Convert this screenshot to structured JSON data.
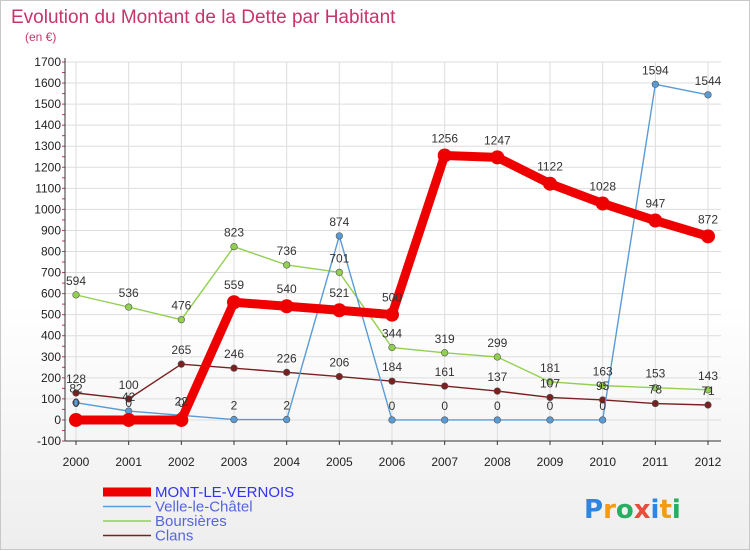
{
  "chart_data": {
    "type": "line",
    "title": "Evolution du Montant de la Dette par Habitant",
    "subtitle": "(en €)",
    "xlabel": "",
    "ylabel": "",
    "categories": [
      "2000",
      "2001",
      "2002",
      "2003",
      "2004",
      "2005",
      "2006",
      "2007",
      "2008",
      "2009",
      "2010",
      "2011",
      "2012"
    ],
    "ylim": [
      -100,
      1700
    ],
    "yticks": [
      -100,
      0,
      100,
      200,
      300,
      400,
      500,
      600,
      700,
      800,
      900,
      1000,
      1100,
      1200,
      1300,
      1400,
      1500,
      1600,
      1700
    ],
    "grid": true,
    "legend_position": "bottom-left",
    "series": [
      {
        "name": "MONT-LE-VERNOIS",
        "color": "#ee0000",
        "values": [
          0,
          0,
          0,
          559,
          540,
          521,
          500,
          1256,
          1247,
          1122,
          1028,
          947,
          872
        ]
      },
      {
        "name": "Velle-le-Châtel",
        "color": "#5b9bd5",
        "values": [
          82,
          42,
          22,
          2,
          2,
          874,
          0,
          0,
          0,
          0,
          0,
          1594,
          1544
        ]
      },
      {
        "name": "Boursières",
        "color": "#92d050",
        "values": [
          594,
          536,
          476,
          823,
          736,
          701,
          344,
          319,
          299,
          181,
          163,
          153,
          143
        ]
      },
      {
        "name": "Clans",
        "color": "#7b2020",
        "values": [
          128,
          100,
          265,
          246,
          226,
          206,
          184,
          161,
          137,
          107,
          95,
          78,
          71
        ]
      }
    ]
  },
  "brand": {
    "letters": [
      "P",
      "r",
      "o",
      "x",
      "i",
      "t",
      "i"
    ],
    "colors": [
      "#2e86de",
      "#f39c12",
      "#27ae60",
      "#e74c3c",
      "#2e86de",
      "#f39c12",
      "#27ae60"
    ]
  }
}
